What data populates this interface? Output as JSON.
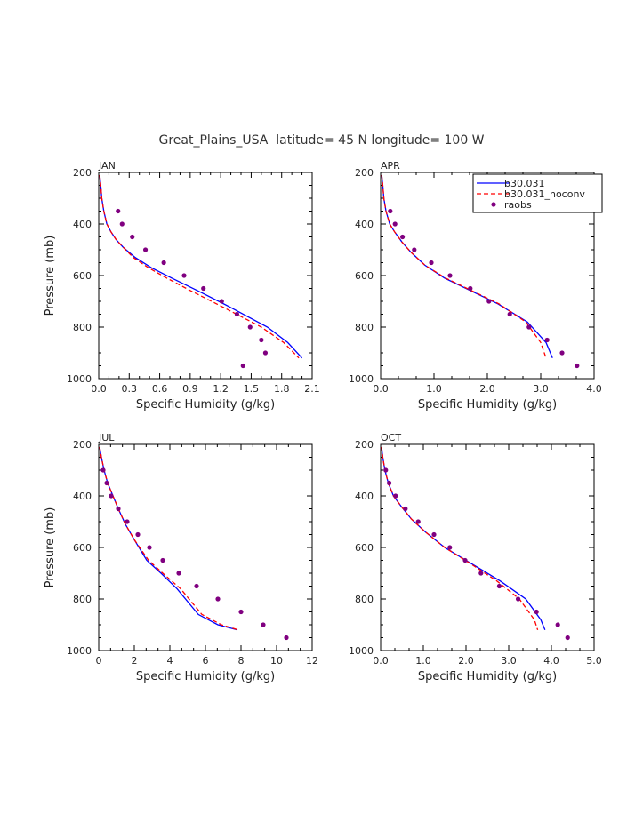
{
  "title": "Great_Plains_USA  latitude= 45 N longitude= 100 W",
  "legend": {
    "entries": [
      {
        "label": "b30.031",
        "color": "#0000ff",
        "style": "solid"
      },
      {
        "label": "b30.031_noconv",
        "color": "#ff0000",
        "style": "dashed"
      },
      {
        "label": "raobs",
        "color": "#800080",
        "style": "marker"
      }
    ]
  },
  "chart_data": [
    {
      "type": "line",
      "panel_label": "JAN",
      "xlabel": "Specific Humidity (g/kg)",
      "ylabel": "Pressure (mb)",
      "xlim": [
        0,
        2.1
      ],
      "ylim": [
        1000,
        200
      ],
      "xticks": [
        "0.0",
        "0.3",
        "0.6",
        "0.9",
        "1.2",
        "1.5",
        "1.8",
        "2.1"
      ],
      "xtick_values": [
        0,
        0.3,
        0.6,
        0.9,
        1.2,
        1.5,
        1.8,
        2.1
      ],
      "yticks": [
        "200",
        "400",
        "600",
        "800",
        "1000"
      ],
      "ytick_values": [
        200,
        400,
        600,
        800,
        1000
      ],
      "series": [
        {
          "name": "b30.031",
          "x": [
            0.01,
            0.02,
            0.03,
            0.05,
            0.08,
            0.12,
            0.17,
            0.24,
            0.36,
            0.52,
            0.72,
            0.98,
            1.28,
            1.66,
            1.86,
            2.0
          ],
          "y": [
            210,
            250,
            300,
            350,
            400,
            430,
            460,
            490,
            530,
            570,
            610,
            660,
            720,
            800,
            860,
            920
          ]
        },
        {
          "name": "b30.031_noconv",
          "x": [
            0.01,
            0.02,
            0.03,
            0.05,
            0.08,
            0.12,
            0.17,
            0.24,
            0.34,
            0.49,
            0.67,
            0.91,
            1.21,
            1.6,
            1.82,
            1.97
          ],
          "y": [
            210,
            250,
            300,
            350,
            400,
            430,
            460,
            490,
            530,
            570,
            610,
            660,
            720,
            800,
            860,
            920
          ]
        },
        {
          "name": "raobs",
          "x": [
            0.19,
            0.23,
            0.33,
            0.46,
            0.64,
            0.84,
            1.03,
            1.21,
            1.36,
            1.49,
            1.6,
            1.64,
            1.42
          ],
          "y": [
            350,
            400,
            450,
            500,
            550,
            600,
            650,
            700,
            750,
            800,
            850,
            900,
            950
          ]
        }
      ]
    },
    {
      "type": "line",
      "panel_label": "APR",
      "xlabel": "Specific Humidity (g/kg)",
      "ylabel": "",
      "xlim": [
        0,
        4.0
      ],
      "ylim": [
        1000,
        200
      ],
      "xticks": [
        "0.0",
        "1.0",
        "2.0",
        "3.0",
        "4.0"
      ],
      "xtick_values": [
        0,
        1,
        2,
        3,
        4
      ],
      "yticks": [
        "200",
        "400",
        "600",
        "800",
        "1000"
      ],
      "ytick_values": [
        200,
        400,
        600,
        800,
        1000
      ],
      "series": [
        {
          "name": "b30.031",
          "x": [
            0.02,
            0.04,
            0.06,
            0.1,
            0.17,
            0.26,
            0.4,
            0.57,
            0.83,
            1.2,
            1.7,
            2.2,
            2.75,
            3.1,
            3.22
          ],
          "y": [
            210,
            250,
            300,
            350,
            400,
            430,
            470,
            510,
            560,
            610,
            660,
            710,
            780,
            860,
            920
          ]
        },
        {
          "name": "b30.031_noconv",
          "x": [
            0.02,
            0.04,
            0.06,
            0.1,
            0.17,
            0.26,
            0.4,
            0.57,
            0.83,
            1.22,
            1.72,
            2.22,
            2.72,
            3.0,
            3.1
          ],
          "y": [
            210,
            250,
            300,
            350,
            400,
            430,
            470,
            510,
            560,
            610,
            660,
            710,
            780,
            860,
            920
          ]
        },
        {
          "name": "raobs",
          "x": [
            0.18,
            0.27,
            0.41,
            0.63,
            0.95,
            1.3,
            1.68,
            2.03,
            2.42,
            2.78,
            3.12,
            3.4,
            3.68
          ],
          "y": [
            350,
            400,
            450,
            500,
            550,
            600,
            650,
            700,
            750,
            800,
            850,
            900,
            950
          ]
        }
      ]
    },
    {
      "type": "line",
      "panel_label": "JUL",
      "xlabel": "Specific Humidity (g/kg)",
      "ylabel": "Pressure (mb)",
      "xlim": [
        0,
        12
      ],
      "ylim": [
        1000,
        200
      ],
      "xticks": [
        "0",
        "2",
        "4",
        "6",
        "8",
        "10",
        "12"
      ],
      "xtick_values": [
        0,
        2,
        4,
        6,
        8,
        10,
        12
      ],
      "yticks": [
        "200",
        "400",
        "600",
        "800",
        "1000"
      ],
      "ytick_values": [
        200,
        400,
        600,
        800,
        1000
      ],
      "series": [
        {
          "name": "b30.031",
          "x": [
            0.05,
            0.15,
            0.3,
            0.5,
            0.8,
            1.1,
            1.5,
            2.0,
            2.7,
            3.5,
            4.4,
            5.6,
            6.7,
            7.8
          ],
          "y": [
            210,
            250,
            300,
            350,
            400,
            450,
            510,
            570,
            650,
            700,
            760,
            860,
            900,
            920
          ]
        },
        {
          "name": "b30.031_noconv",
          "x": [
            0.05,
            0.15,
            0.3,
            0.5,
            0.8,
            1.1,
            1.5,
            2.0,
            2.8,
            3.6,
            4.6,
            5.8,
            6.9,
            7.85
          ],
          "y": [
            210,
            250,
            300,
            350,
            400,
            450,
            510,
            570,
            650,
            700,
            760,
            860,
            900,
            920
          ]
        },
        {
          "name": "raobs",
          "x": [
            0.25,
            0.45,
            0.7,
            1.1,
            1.6,
            2.2,
            2.85,
            3.6,
            4.5,
            5.5,
            6.7,
            8.0,
            9.25,
            10.55
          ],
          "y": [
            300,
            350,
            400,
            450,
            500,
            550,
            600,
            650,
            700,
            750,
            800,
            850,
            900,
            950
          ]
        }
      ]
    },
    {
      "type": "line",
      "panel_label": "OCT",
      "xlabel": "Specific Humidity (g/kg)",
      "ylabel": "",
      "xlim": [
        0,
        5.0
      ],
      "ylim": [
        1000,
        200
      ],
      "xticks": [
        "0.0",
        "1.0",
        "2.0",
        "3.0",
        "4.0",
        "5.0"
      ],
      "xtick_values": [
        0,
        1,
        2,
        3,
        4,
        5
      ],
      "yticks": [
        "200",
        "400",
        "600",
        "800",
        "1000"
      ],
      "ytick_values": [
        200,
        400,
        600,
        800,
        1000
      ],
      "series": [
        {
          "name": "b30.031",
          "x": [
            0.02,
            0.05,
            0.1,
            0.18,
            0.3,
            0.48,
            0.72,
            1.05,
            1.5,
            2.1,
            2.8,
            3.4,
            3.75,
            3.85
          ],
          "y": [
            210,
            250,
            300,
            350,
            400,
            440,
            490,
            540,
            600,
            660,
            730,
            800,
            880,
            920
          ]
        },
        {
          "name": "b30.031_noconv",
          "x": [
            0.02,
            0.05,
            0.1,
            0.18,
            0.3,
            0.48,
            0.72,
            1.05,
            1.5,
            2.08,
            2.72,
            3.25,
            3.6,
            3.68
          ],
          "y": [
            210,
            250,
            300,
            350,
            400,
            440,
            490,
            540,
            600,
            660,
            730,
            800,
            880,
            920
          ]
        },
        {
          "name": "raobs",
          "x": [
            0.12,
            0.2,
            0.35,
            0.58,
            0.88,
            1.25,
            1.62,
            1.98,
            2.35,
            2.78,
            3.22,
            3.65,
            4.15,
            4.38
          ],
          "y": [
            300,
            350,
            400,
            450,
            500,
            550,
            600,
            650,
            700,
            750,
            800,
            850,
            900,
            950
          ]
        }
      ]
    }
  ]
}
